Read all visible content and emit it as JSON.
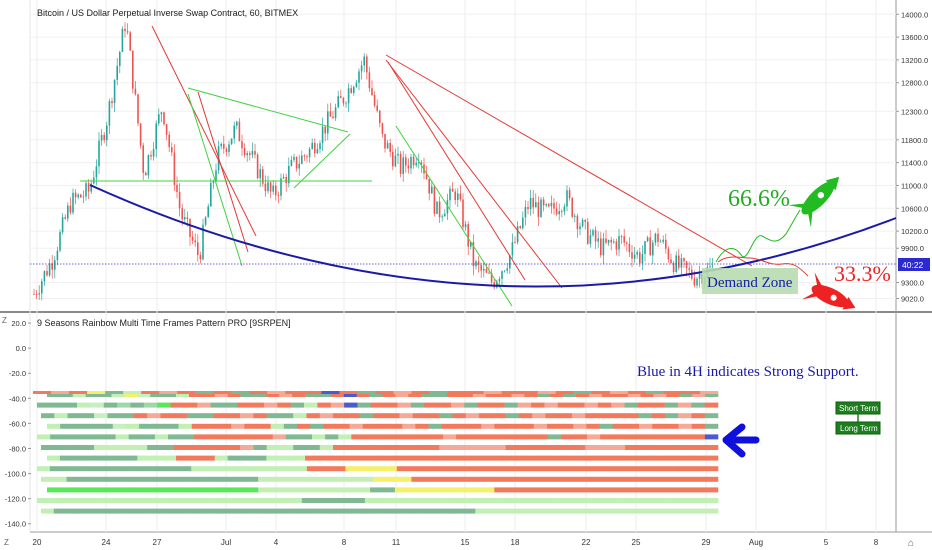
{
  "chart": {
    "title": "Bitcoin / US Dollar Perpetual Inverse Swap Contract, 60, BITMEX",
    "price_label": "40:22",
    "y_ticks": [
      "14000.0",
      "13600.0",
      "13200.0",
      "12800.0",
      "12300.0",
      "11800.0",
      "11400.0",
      "11000.0",
      "10600.0",
      "10200.0",
      "9900.0",
      "9300.0",
      "9020.0"
    ]
  },
  "chart_data": [
    {
      "type": "line",
      "title": "Bitcoin / US Dollar Perpetual Inverse Swap Contract, 60, BITMEX",
      "x_labels": [
        "20",
        "24",
        "27",
        "Jul",
        "4",
        "8",
        "11",
        "15",
        "18",
        "22",
        "25",
        "29",
        "Aug",
        "5",
        "8"
      ],
      "ylim": [
        8800,
        14250
      ],
      "series": [
        {
          "values": [
            {
              "x": "20",
              "y": 9100
            },
            {
              "x": "21",
              "y": 9700
            },
            {
              "x": "22",
              "y": 10700
            },
            {
              "x": "24",
              "y": 10900
            },
            {
              "x": "26",
              "y": 12200
            },
            {
              "x": "27",
              "y": 13900
            },
            {
              "x": "28",
              "y": 11200
            },
            {
              "x": "29",
              "y": 12400
            },
            {
              "x": "30",
              "y": 10500
            },
            {
              "x": "Jul 1",
              "y": 9750
            },
            {
              "x": "2",
              "y": 11500
            },
            {
              "x": "3",
              "y": 12000
            },
            {
              "x": "4",
              "y": 11400
            },
            {
              "x": "5",
              "y": 10800
            },
            {
              "x": "6",
              "y": 11300
            },
            {
              "x": "7",
              "y": 11600
            },
            {
              "x": "8",
              "y": 12100
            },
            {
              "x": "9",
              "y": 12600
            },
            {
              "x": "10",
              "y": 13200
            },
            {
              "x": "11",
              "y": 11800
            },
            {
              "x": "12",
              "y": 11300
            },
            {
              "x": "13",
              "y": 11600
            },
            {
              "x": "14",
              "y": 10500
            },
            {
              "x": "15",
              "y": 10900
            },
            {
              "x": "16",
              "y": 9600
            },
            {
              "x": "17",
              "y": 9300
            },
            {
              "x": "18",
              "y": 9800
            },
            {
              "x": "19",
              "y": 10700
            },
            {
              "x": "20",
              "y": 10500
            },
            {
              "x": "21",
              "y": 10800
            },
            {
              "x": "22",
              "y": 10200
            },
            {
              "x": "23",
              "y": 9900
            },
            {
              "x": "24",
              "y": 10050
            },
            {
              "x": "25",
              "y": 9750
            },
            {
              "x": "26",
              "y": 10100
            },
            {
              "x": "27",
              "y": 9600
            },
            {
              "x": "28",
              "y": 9400
            },
            {
              "x": "29",
              "y": 9550
            }
          ]
        }
      ]
    },
    {
      "type": "heatmap",
      "title": "9 Seasons Rainbow Multi Time Frames Pattern PRO [9SRPEN]",
      "y_ticks": [
        20,
        0,
        -20,
        -40,
        -60,
        -80,
        -100,
        -120,
        -140
      ],
      "ylim": [
        -145,
        28
      ],
      "rows": 13
    }
  ],
  "annotations": {
    "up_pct": "66.6%",
    "down_pct": "33.3%",
    "demand_zone": "Demand Zone",
    "support_note": "Blue in 4H indicates Strong Support.",
    "short_term": "Short Term",
    "long_term": "Long Term"
  },
  "corner": {
    "left": "Z",
    "bottom_left": "Z",
    "right": "⌂"
  },
  "colors": {
    "bull": "#26a69a",
    "bear": "#ef5350",
    "trend_red": "#e53935",
    "trend_green": "#43d143",
    "curve": "#1a1aa8",
    "rocket_green": "#22bb22",
    "rocket_red": "#ee2222",
    "label_green": "#1e7d1e"
  }
}
